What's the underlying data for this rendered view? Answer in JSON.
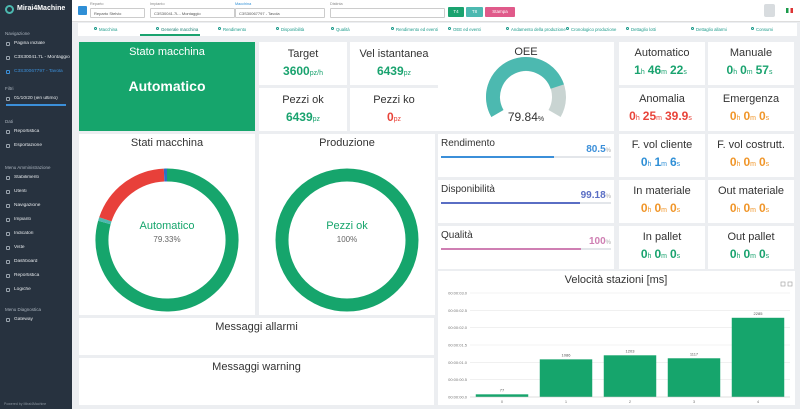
{
  "sidebar": {
    "brand": "Mirai4Machine",
    "sections": [
      {
        "title": "Navigazione",
        "items": [
          "Pagina iniziale",
          "C3S30041.7L - Montaggio I",
          "C3S30067797 - Tavola"
        ]
      },
      {
        "title": "Filtri",
        "items": [
          "01/10/20 (ieri ultimo)"
        ]
      },
      {
        "title": "Dati",
        "items": [
          "Reportistica",
          "Esportazione"
        ]
      },
      {
        "title": "Menu Amministrazione",
        "items": [
          "Stabilimenti",
          "Utenti",
          "Navigazione",
          "Impianti",
          "Indicatori",
          "Viste",
          "Dashboard",
          "Reportistica",
          "Logiche"
        ]
      },
      {
        "title": "Menu Diagnostica",
        "items": [
          "Gateway"
        ]
      }
    ],
    "footer": "Powered by Mirai4Machine"
  },
  "filters": [
    {
      "label": "Reparto",
      "value": "Reparto Stelvio"
    },
    {
      "label": "Impianto",
      "value": "C3S30041.7L - Montaggio"
    },
    {
      "label": "Macchina",
      "value": "C3S30067797 - Tavola"
    },
    {
      "label": "Distinta",
      "value": ""
    }
  ],
  "buttons": [
    "T4",
    "T8",
    "Stampa"
  ],
  "tabs": [
    "Macchina",
    "Generale macchina",
    "Rendimento",
    "Disponibilità",
    "Qualità",
    "Rendimento ed eventi",
    "OEE ed eventi",
    "Andamento della produzione",
    "Cronologico produzione",
    "Dettaglio lotti",
    "Dettaglio allarmi",
    "Consumi"
  ],
  "status": {
    "title": "Stato macchina",
    "value": "Automatico"
  },
  "counters": [
    {
      "title": "Target",
      "value": 3600,
      "unit": "pz/h",
      "color": "#1aa36f"
    },
    {
      "title": "Vel istantanea",
      "value": 6439,
      "unit": "pz",
      "color": "#1aa36f"
    },
    {
      "title": "Pezzi ok",
      "value": 6439,
      "unit": "pz",
      "color": "#1aa36f"
    },
    {
      "title": "Pezzi ko",
      "value": 0,
      "unit": "pz",
      "color": "#e8443a"
    }
  ],
  "oee": {
    "title": "OEE",
    "value": 79.84,
    "unit": "%",
    "color": "#4cb9b0"
  },
  "timers": [
    {
      "title": "Automatico",
      "parts": [
        [
          1,
          "h"
        ],
        [
          46,
          "m"
        ],
        [
          22,
          "s"
        ]
      ],
      "color": "#1aa36f"
    },
    {
      "title": "Manuale",
      "parts": [
        [
          0,
          "h"
        ],
        [
          0,
          "m"
        ],
        [
          57,
          "s"
        ]
      ],
      "color": "#1aa36f"
    },
    {
      "title": "Anomalia",
      "parts": [
        [
          0,
          "h"
        ],
        [
          25,
          "m"
        ],
        [
          39.9,
          "s"
        ]
      ],
      "color": "#e8443a"
    },
    {
      "title": "Emergenza",
      "parts": [
        [
          0,
          "h"
        ],
        [
          0,
          "m"
        ],
        [
          0,
          "s"
        ]
      ],
      "color": "#f0962a"
    },
    {
      "title": "F. vol cliente",
      "parts": [
        [
          0,
          "h"
        ],
        [
          1,
          "m"
        ],
        [
          6,
          "s"
        ]
      ],
      "color": "#2f8fd6"
    },
    {
      "title": "F. vol costrutt.",
      "parts": [
        [
          0,
          "h"
        ],
        [
          0,
          "m"
        ],
        [
          0,
          "s"
        ]
      ],
      "color": "#f0962a"
    },
    {
      "title": "In materiale",
      "parts": [
        [
          0,
          "h"
        ],
        [
          0,
          "m"
        ],
        [
          0,
          "s"
        ]
      ],
      "color": "#f0962a"
    },
    {
      "title": "Out materiale",
      "parts": [
        [
          0,
          "h"
        ],
        [
          0,
          "m"
        ],
        [
          0,
          "s"
        ]
      ],
      "color": "#f0962a"
    },
    {
      "title": "In pallet",
      "parts": [
        [
          0,
          "h"
        ],
        [
          0,
          "m"
        ],
        [
          0,
          "s"
        ]
      ],
      "color": "#1aa36f"
    },
    {
      "title": "Out pallet",
      "parts": [
        [
          0,
          "h"
        ],
        [
          0,
          "m"
        ],
        [
          0,
          "s"
        ]
      ],
      "color": "#1aa36f"
    }
  ],
  "rates": [
    {
      "title": "Rendimento",
      "value": 80.5,
      "unit": "%",
      "color": "#3b8fd9"
    },
    {
      "title": "Disponibilità",
      "value": 99.18,
      "unit": "%",
      "color": "#5a6ec4"
    },
    {
      "title": "Qualità",
      "value": 100,
      "unit": "%",
      "color": "#cf7fb3"
    }
  ],
  "donuts": [
    {
      "title": "Stati macchina",
      "label": "Automatico",
      "value": 79.33,
      "value_label": "79.33%",
      "segments": [
        {
          "value": 79.33,
          "color": "#16a56c"
        },
        {
          "value": 0.82,
          "color": "#4cb9b0"
        },
        {
          "value": 19.14,
          "color": "#e8403a"
        },
        {
          "value": 0.71,
          "color": "#2d6fc4"
        }
      ]
    },
    {
      "title": "Produzione",
      "label": "Pezzi ok",
      "value": 100,
      "value_label": "100%",
      "segments": [
        {
          "value": 100,
          "color": "#16a56c"
        },
        {
          "value": 0,
          "color": "#e8403a"
        }
      ]
    }
  ],
  "chart_data": {
    "type": "bar",
    "title": "Velocità stazioni [ms]",
    "categories": [
      "0",
      "1",
      "2",
      "3",
      "4"
    ],
    "values": [
      77,
      1086,
      1203,
      1117,
      2285
    ],
    "color": "#16a56c",
    "ylim": [
      0,
      3000
    ],
    "yticks": [
      {
        "value": 0,
        "label": "00:00:00.0"
      },
      {
        "value": 500,
        "label": "00:00:00.5"
      },
      {
        "value": 1000,
        "label": "00:00:01.0"
      },
      {
        "value": 1500,
        "label": "00:00:01.5"
      },
      {
        "value": 2000,
        "label": "00:00:02.0"
      },
      {
        "value": 2500,
        "label": "00:00:02.5"
      },
      {
        "value": 3000,
        "label": "00:00:03.0"
      }
    ],
    "grid": true
  },
  "messages": [
    "Messaggi allarmi",
    "Messaggi warning"
  ]
}
